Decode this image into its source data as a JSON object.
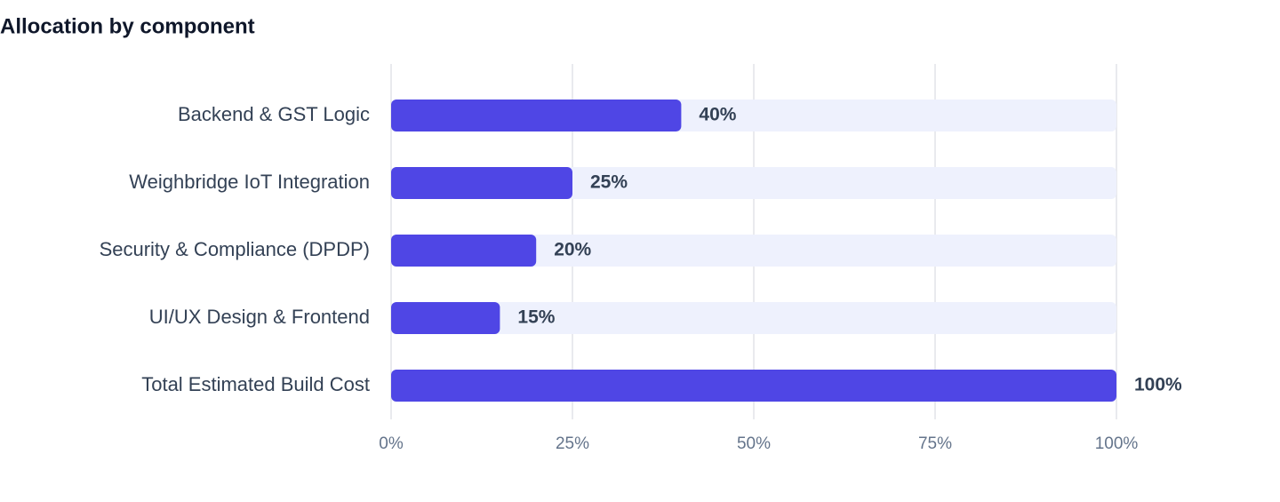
{
  "chart_data": {
    "type": "bar",
    "orientation": "horizontal",
    "title": "Allocation by component",
    "categories": [
      "Backend & GST Logic",
      "Weighbridge IoT Integration",
      "Security & Compliance (DPDP)",
      "UI/UX Design & Frontend",
      "Total Estimated Build Cost"
    ],
    "values": [
      40,
      25,
      20,
      15,
      100
    ],
    "value_labels": [
      "40%",
      "25%",
      "20%",
      "15%",
      "100%"
    ],
    "color": "#4f46e5",
    "xlim": [
      0,
      100
    ],
    "xticks": [
      {
        "value": 0,
        "label": "0%"
      },
      {
        "value": 25,
        "label": "25%"
      },
      {
        "value": 50,
        "label": "50%"
      },
      {
        "value": 75,
        "label": "75%"
      },
      {
        "value": 100,
        "label": "100%"
      }
    ],
    "grid": true
  }
}
